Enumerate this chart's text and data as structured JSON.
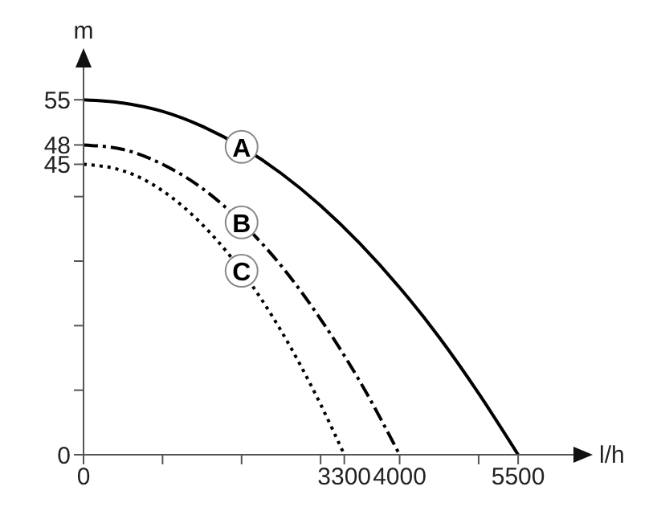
{
  "chart_data": {
    "type": "line",
    "xlabel": "l/h",
    "ylabel": "m",
    "xlim": [
      0,
      6200
    ],
    "ylim": [
      0,
      60
    ],
    "xticks": [
      0,
      {
        "value": 1000,
        "label": null
      },
      {
        "value": 2000,
        "label": null
      },
      {
        "value": 3000,
        "label": null
      },
      3300,
      4000,
      {
        "value": 5000,
        "label": null
      },
      5500
    ],
    "yticks": [
      0,
      {
        "value": 10,
        "label": null
      },
      {
        "value": 20,
        "label": null
      },
      {
        "value": 30,
        "label": null
      },
      {
        "value": 40,
        "label": null
      },
      45,
      48,
      55
    ],
    "grid": false,
    "legend": false,
    "marker": "none",
    "series": [
      {
        "name": "A",
        "color": "#000000",
        "line_style": "solid",
        "x": [
          0,
          500,
          1000,
          1500,
          2000,
          2500,
          3000,
          3500,
          4000,
          4500,
          5000,
          5500
        ],
        "values": [
          55,
          54.5,
          53.2,
          50.9,
          47.7,
          43.6,
          38.6,
          32.7,
          25.9,
          18.2,
          9.5,
          0
        ]
      },
      {
        "name": "B",
        "color": "#000000",
        "line_style": "dashdot",
        "x": [
          0,
          500,
          1000,
          1500,
          2000,
          2500,
          3000,
          3500,
          4000
        ],
        "values": [
          48,
          47.3,
          45,
          41.3,
          36,
          29.3,
          21,
          11.3,
          0
        ]
      },
      {
        "name": "C",
        "color": "#000000",
        "line_style": "dotted",
        "x": [
          0,
          500,
          1000,
          1500,
          2000,
          2500,
          3000,
          3300
        ],
        "values": [
          45,
          44,
          40.9,
          35.7,
          28.5,
          19.2,
          7.8,
          0
        ]
      }
    ]
  }
}
